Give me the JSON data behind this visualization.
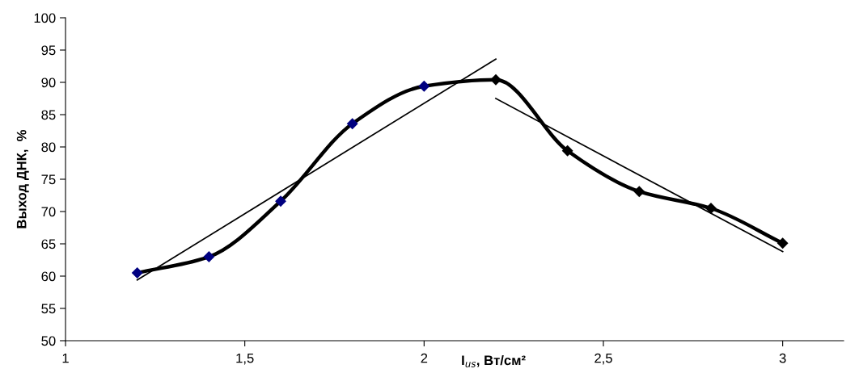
{
  "chart_data": {
    "type": "line",
    "xlabel": "I$_{us}$, Вт/см²",
    "ylabel": "Выход ДНК,  %",
    "xlim": [
      1,
      3.17
    ],
    "xticks": [
      1,
      {
        "value": 1.5,
        "label": "1,5"
      },
      2,
      {
        "value": 2.5,
        "label": "2,5"
      },
      3
    ],
    "ylim": [
      50,
      100
    ],
    "yticks": [
      50,
      55,
      60,
      65,
      70,
      75,
      80,
      85,
      90,
      95,
      100
    ],
    "grid": false,
    "line_style": "solid",
    "series": [
      {
        "color": "#000000",
        "marker": "none",
        "x": [
          1.2,
          1.4,
          1.6,
          1.8,
          2.0,
          2.2,
          2.4,
          2.6,
          2.8,
          3.0
        ],
        "values": [
          60.5,
          63,
          71.6,
          83.6,
          89.4,
          90.4,
          79.4,
          73.1,
          70.5,
          65.1
        ]
      },
      {
        "type": "scatter",
        "color": "#000080",
        "marker": "diamond",
        "x": [
          1.2,
          1.4,
          1.6,
          1.8,
          2.0
        ],
        "values": [
          60.5,
          63,
          71.6,
          83.6,
          89.4
        ]
      },
      {
        "type": "scatter",
        "color": "#000000",
        "marker": "diamond",
        "x": [
          2.2,
          2.4,
          2.6,
          2.8,
          3.0
        ],
        "values": [
          90.4,
          79.4,
          73.1,
          70.5,
          65.1
        ]
      },
      {
        "color": "#000000",
        "marker": "none",
        "x": [
          1.2,
          2.2
        ],
        "values": [
          59.4,
          93.6
        ]
      },
      {
        "color": "#000000",
        "marker": "none",
        "x": [
          2.2,
          3.0
        ],
        "values": [
          87.5,
          63.8
        ]
      }
    ]
  }
}
